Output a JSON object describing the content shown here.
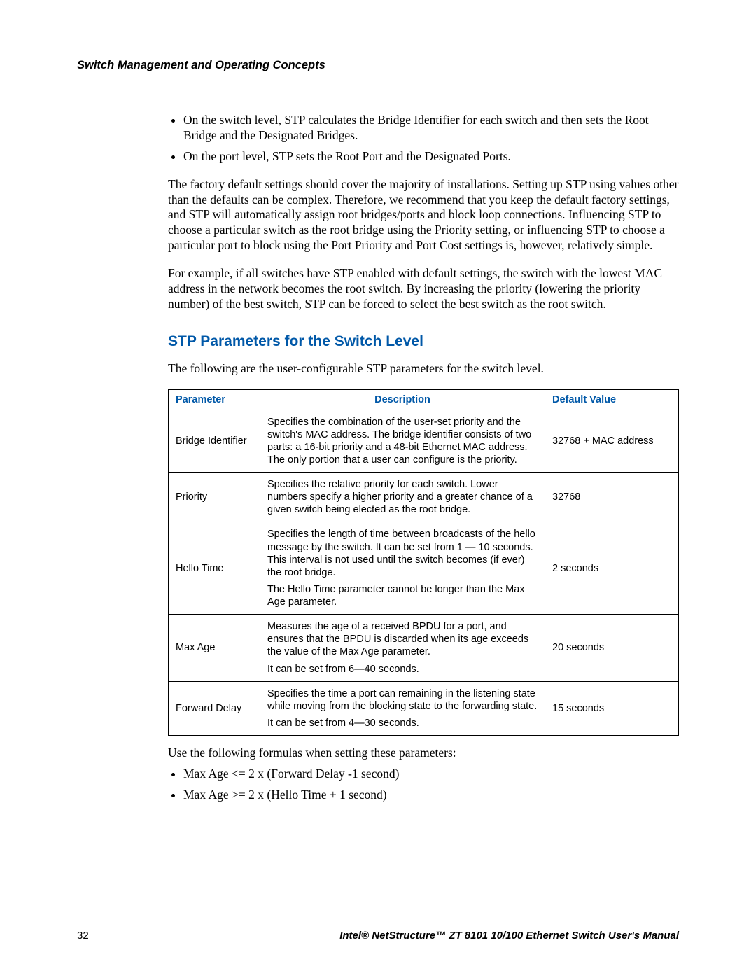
{
  "header": "Switch Management and Operating Concepts",
  "bullets_top": [
    "On the switch level, STP calculates the Bridge Identifier for each switch and then sets the Root Bridge and the Designated Bridges.",
    "On the port level, STP sets the Root Port and the Designated Ports."
  ],
  "para1": "The factory default settings should cover the majority of installations. Setting up STP using values other than the defaults can be complex. Therefore, we recommend that you keep the default factory settings, and STP will automatically assign root bridges/ports and block loop connections. Influencing STP to choose a particular switch as the root bridge using the Priority setting, or influencing STP to choose a particular port to block using the Port Priority and Port Cost settings is, however, relatively simple.",
  "para2": "For example, if all switches have STP enabled with default settings, the switch with the lowest MAC address in the network becomes the root switch. By increasing the priority (lowering the priority number) of the best switch, STP can be forced to select the best switch as the root switch.",
  "section_title": "STP Parameters for the Switch Level",
  "para3": "The following are the user-configurable STP parameters for the switch level.",
  "table": {
    "columns": [
      "Parameter",
      "Description",
      "Default Value"
    ],
    "rows": [
      {
        "param": "Bridge Identifier",
        "desc": [
          "Specifies the combination of the user-set priority and the switch's MAC address. The bridge identifier consists of two parts: a 16-bit priority and a 48-bit Ethernet MAC address. The only portion that a user can configure is the priority."
        ],
        "default": "32768 + MAC address"
      },
      {
        "param": "Priority",
        "desc": [
          "Specifies the relative priority for each switch. Lower numbers specify a higher priority and a greater chance of a given switch being elected as the root bridge."
        ],
        "default": "32768"
      },
      {
        "param": "Hello Time",
        "desc": [
          "Specifies the length of time between broadcasts of the hello message by the switch. It can be set from 1 — 10 seconds. This interval is not used until the switch becomes (if ever) the root bridge.",
          "The Hello Time parameter cannot be longer than the Max Age parameter."
        ],
        "default": "2 seconds"
      },
      {
        "param": "Max Age",
        "desc": [
          "Measures the age of a received BPDU for a port, and ensures that the BPDU is discarded when its age exceeds the value of the Max Age parameter.",
          "It can be set from 6—40 seconds."
        ],
        "default": "20 seconds"
      },
      {
        "param": "Forward Delay",
        "desc": [
          "Specifies the time a port can remaining in the listening state while moving from the blocking state to the forwarding state.",
          "It can be set from 4—30 seconds."
        ],
        "default": "15 seconds"
      }
    ]
  },
  "para4": "Use the following formulas when setting these parameters:",
  "formulas": [
    "Max Age <= 2 x (Forward Delay -1 second)",
    "Max Age >= 2 x (Hello Time + 1 second)"
  ],
  "footer": {
    "page": "32",
    "book": "Intel® NetStructure™ ZT 8101 10/100 Ethernet Switch User's Manual"
  }
}
